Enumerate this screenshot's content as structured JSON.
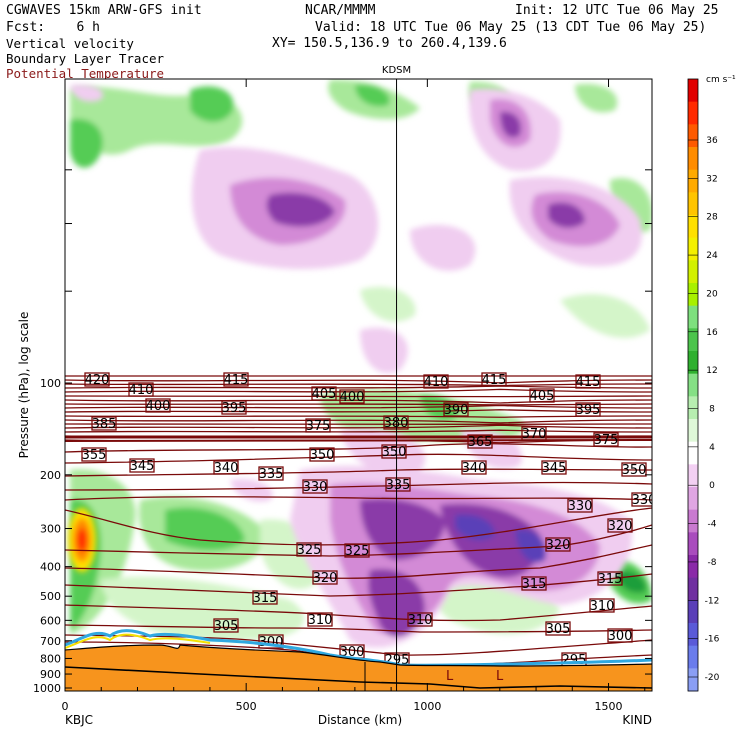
{
  "header": {
    "model": "CGWAVES 15km ARW-GFS init",
    "org": "NCAR/MMMM",
    "init": "Init: 12 UTC Tue 06 May 25",
    "fcst": "Fcst:    6 h",
    "valid": "Valid: 18 UTC Tue 06 May 25 (13 CDT Tue 06 May 25)",
    "fields": [
      "Vertical velocity",
      "Boundary Layer Tracer",
      "Potential Temperature"
    ],
    "xy": "XY= 150.5,136.9 to 260.4,139.6"
  },
  "colors": {
    "theta": "#7a0a0a",
    "terrain": "#f7941d",
    "up_light": "#d4f5c9",
    "up_mid": "#a8e89a",
    "up_dark": "#55cc55",
    "down_light": "#f0cdf0",
    "down_mid": "#d38ad6",
    "down_dark": "#8a3aa8"
  },
  "chart_data": {
    "type": "heatmap",
    "title": "Vertical velocity",
    "xlabel": "Distance (km)",
    "ylabel": "Pressure (hPa), log scale",
    "xlim": [
      0,
      1620
    ],
    "x_ticks": [
      0,
      500,
      1000,
      1500
    ],
    "y_scale": "log",
    "y_ticks": [
      100,
      200,
      300,
      400,
      500,
      600,
      700,
      800,
      900,
      1000
    ],
    "start_station": "KBJC",
    "end_station": "KIND",
    "marker_station": "KDSM",
    "marker_x_km": 915,
    "colorbar": {
      "unit": "cm s⁻¹",
      "ticks": [
        36,
        32,
        28,
        24,
        20,
        16,
        12,
        8,
        4,
        0,
        -4,
        -8,
        -12,
        -16,
        -20
      ],
      "colors": [
        "#e10000",
        "#ff2a00",
        "#ff5a00",
        "#ff8c00",
        "#ffaa00",
        "#ffc400",
        "#ffe000",
        "#f4f000",
        "#d2f000",
        "#a8f000",
        "#7ee07e",
        "#4cc44c",
        "#2fb02f",
        "#85e085",
        "#b7eeb0",
        "#dff8d8",
        "#ffffff",
        "#f3d0f3",
        "#e0a6e3",
        "#c97ad0",
        "#a94cbd",
        "#8a2aa8",
        "#7030a0",
        "#5a3fb8",
        "#5a5ad8",
        "#6a7cec",
        "#8a9ef4"
      ]
    },
    "theta_labels": [
      "420",
      "410",
      "415",
      "410",
      "415",
      "415",
      "400",
      "395",
      "405",
      "400",
      "390",
      "405",
      "395",
      "385",
      "375",
      "380",
      "365",
      "370",
      "375",
      "355",
      "345",
      "350",
      "350",
      "340",
      "345",
      "350",
      "340",
      "335",
      "330",
      "335",
      "330",
      "330",
      "320",
      "325",
      "325",
      "320",
      "320",
      "315",
      "315",
      "315",
      "310",
      "310",
      "310",
      "305",
      "305",
      "300",
      "300",
      "300",
      "295",
      "295"
    ]
  }
}
